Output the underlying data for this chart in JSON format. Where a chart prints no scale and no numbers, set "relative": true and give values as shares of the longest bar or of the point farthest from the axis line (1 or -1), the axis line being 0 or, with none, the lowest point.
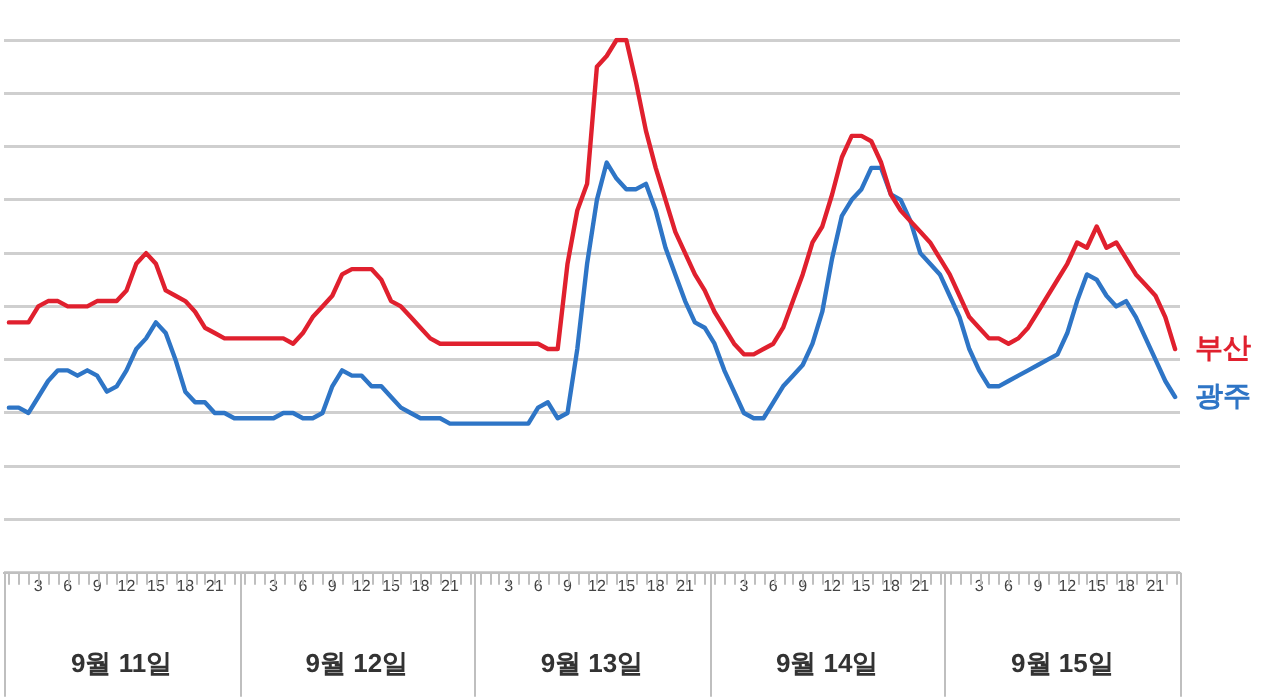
{
  "chart_data": {
    "type": "line",
    "relative": true,
    "grid": "y",
    "legend": false,
    "marker": "none",
    "line_style": "solid",
    "categories": [
      null,
      null,
      null,
      "3",
      null,
      null,
      "6",
      null,
      null,
      "9",
      null,
      null,
      "12",
      null,
      null,
      "15",
      null,
      null,
      "18",
      null,
      null,
      "21",
      null,
      null,
      null,
      null,
      null,
      "3",
      null,
      null,
      "6",
      null,
      null,
      "9",
      null,
      null,
      "12",
      null,
      null,
      "15",
      null,
      null,
      "18",
      null,
      null,
      "21",
      null,
      null,
      null,
      null,
      null,
      "3",
      null,
      null,
      "6",
      null,
      null,
      "9",
      null,
      null,
      "12",
      null,
      null,
      "15",
      null,
      null,
      "18",
      null,
      null,
      "21",
      null,
      null,
      null,
      null,
      null,
      "3",
      null,
      null,
      "6",
      null,
      null,
      "9",
      null,
      null,
      "12",
      null,
      null,
      "15",
      null,
      null,
      "18",
      null,
      null,
      "21",
      null,
      null,
      null,
      null,
      null,
      "3",
      null,
      null,
      "6",
      null,
      null,
      "9",
      null,
      null,
      "12",
      null,
      null,
      "15",
      null,
      null,
      "18",
      null,
      null,
      "21",
      null,
      null
    ],
    "annotations": [
      "9월 11일",
      "9월 12일",
      "9월 13일",
      "9월 14일",
      "9월 15일"
    ],
    "series": [
      {
        "name": "부산",
        "color": "#e0202e",
        "values": [
          0.47,
          0.47,
          0.47,
          0.5,
          0.51,
          0.51,
          0.5,
          0.5,
          0.5,
          0.51,
          0.51,
          0.51,
          0.53,
          0.58,
          0.6,
          0.58,
          0.53,
          0.52,
          0.51,
          0.49,
          0.46,
          0.45,
          0.44,
          0.44,
          0.44,
          0.44,
          0.44,
          0.44,
          0.44,
          0.43,
          0.45,
          0.48,
          0.5,
          0.52,
          0.56,
          0.57,
          0.57,
          0.57,
          0.55,
          0.51,
          0.5,
          0.48,
          0.46,
          0.44,
          0.43,
          0.43,
          0.43,
          0.43,
          0.43,
          0.43,
          0.43,
          0.43,
          0.43,
          0.43,
          0.43,
          0.42,
          0.42,
          0.58,
          0.68,
          0.73,
          0.95,
          0.97,
          1.0,
          1.0,
          0.92,
          0.83,
          0.76,
          0.7,
          0.64,
          0.6,
          0.56,
          0.53,
          0.49,
          0.46,
          0.43,
          0.41,
          0.41,
          0.42,
          0.43,
          0.46,
          0.51,
          0.56,
          0.62,
          0.65,
          0.71,
          0.78,
          0.82,
          0.82,
          0.81,
          0.77,
          0.71,
          0.68,
          0.66,
          0.64,
          0.62,
          0.59,
          0.56,
          0.52,
          0.48,
          0.46,
          0.44,
          0.44,
          0.43,
          0.44,
          0.46,
          0.49,
          0.52,
          0.55,
          0.58,
          0.62,
          0.61,
          0.65,
          0.61,
          0.62,
          0.59,
          0.56,
          0.54,
          0.52,
          0.48,
          0.42
        ]
      },
      {
        "name": "광주",
        "color": "#2e75c6",
        "values": [
          0.31,
          0.31,
          0.3,
          0.33,
          0.36,
          0.38,
          0.38,
          0.37,
          0.38,
          0.37,
          0.34,
          0.35,
          0.38,
          0.42,
          0.44,
          0.47,
          0.45,
          0.4,
          0.34,
          0.32,
          0.32,
          0.3,
          0.3,
          0.29,
          0.29,
          0.29,
          0.29,
          0.29,
          0.3,
          0.3,
          0.29,
          0.29,
          0.3,
          0.35,
          0.38,
          0.37,
          0.37,
          0.35,
          0.35,
          0.33,
          0.31,
          0.3,
          0.29,
          0.29,
          0.29,
          0.28,
          0.28,
          0.28,
          0.28,
          0.28,
          0.28,
          0.28,
          0.28,
          0.28,
          0.31,
          0.32,
          0.29,
          0.3,
          0.42,
          0.58,
          0.7,
          0.77,
          0.74,
          0.72,
          0.72,
          0.73,
          0.68,
          0.61,
          0.56,
          0.51,
          0.47,
          0.46,
          0.43,
          0.38,
          0.34,
          0.3,
          0.29,
          0.29,
          0.32,
          0.35,
          0.37,
          0.39,
          0.43,
          0.49,
          0.59,
          0.67,
          0.7,
          0.72,
          0.76,
          0.76,
          0.71,
          0.7,
          0.66,
          0.6,
          0.58,
          0.56,
          0.52,
          0.48,
          0.42,
          0.38,
          0.35,
          0.35,
          0.36,
          0.37,
          0.38,
          0.39,
          0.4,
          0.41,
          0.45,
          0.51,
          0.56,
          0.55,
          0.52,
          0.5,
          0.51,
          0.48,
          0.44,
          0.4,
          0.36,
          0.33
        ]
      }
    ]
  }
}
